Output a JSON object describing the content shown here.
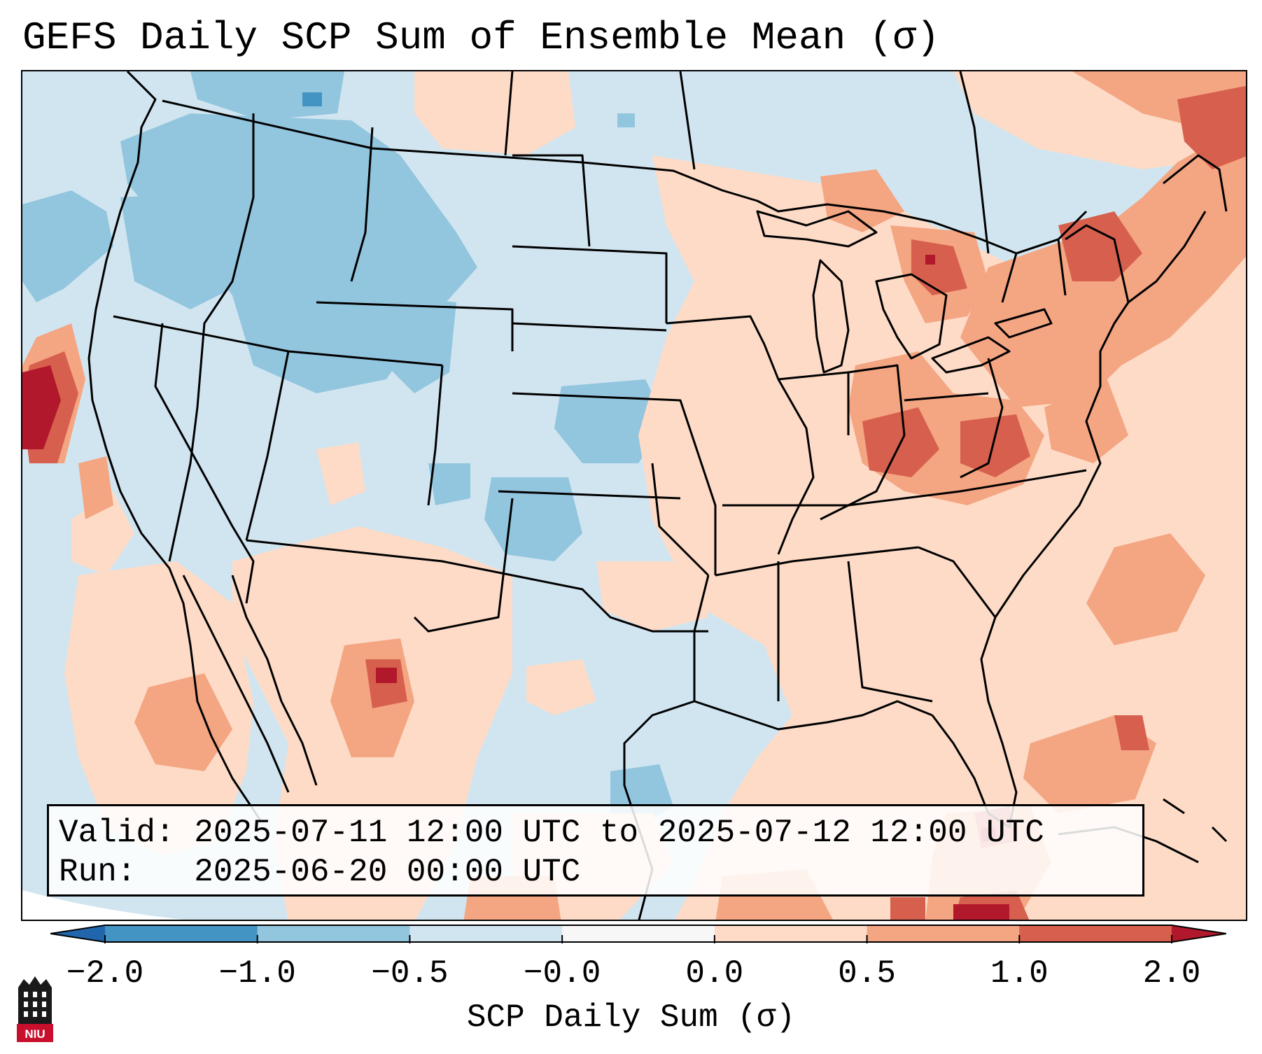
{
  "title": "GEFS Daily SCP Sum of Ensemble Mean (σ)",
  "info": {
    "valid_label": "Valid:",
    "valid_value": "2025-07-11 12:00 UTC to 2025-07-12 12:00 UTC",
    "run_label": "Run:",
    "run_value": "2025-06-20 00:00 UTC"
  },
  "colorbar": {
    "label": "SCP Daily Sum (σ)",
    "ticks": [
      "−2.0",
      "−1.0",
      "−0.5",
      "−0.0",
      "0.0",
      "0.5",
      "1.0",
      "2.0"
    ],
    "bins": [
      {
        "range": "-2.0 to -1.0",
        "color": "#4393c3"
      },
      {
        "range": "-1.0 to -0.5",
        "color": "#92c5de"
      },
      {
        "range": "-0.5 to -0.0",
        "color": "#d1e5f0"
      },
      {
        "range": "-0.0 to 0.0",
        "color": "#f7f7f7"
      },
      {
        "range": "0.0 to 0.5",
        "color": "#fddbc7"
      },
      {
        "range": "0.5 to 1.0",
        "color": "#f4a582"
      },
      {
        "range": "1.0 to 2.0",
        "color": "#d6604d"
      }
    ],
    "under_color": "#2166ac",
    "over_color": "#b2182b"
  },
  "map": {
    "background_color": "#d1e5f0",
    "border_color": "#000000"
  },
  "logo": {
    "text": "NIU",
    "color": "#c8102e"
  }
}
